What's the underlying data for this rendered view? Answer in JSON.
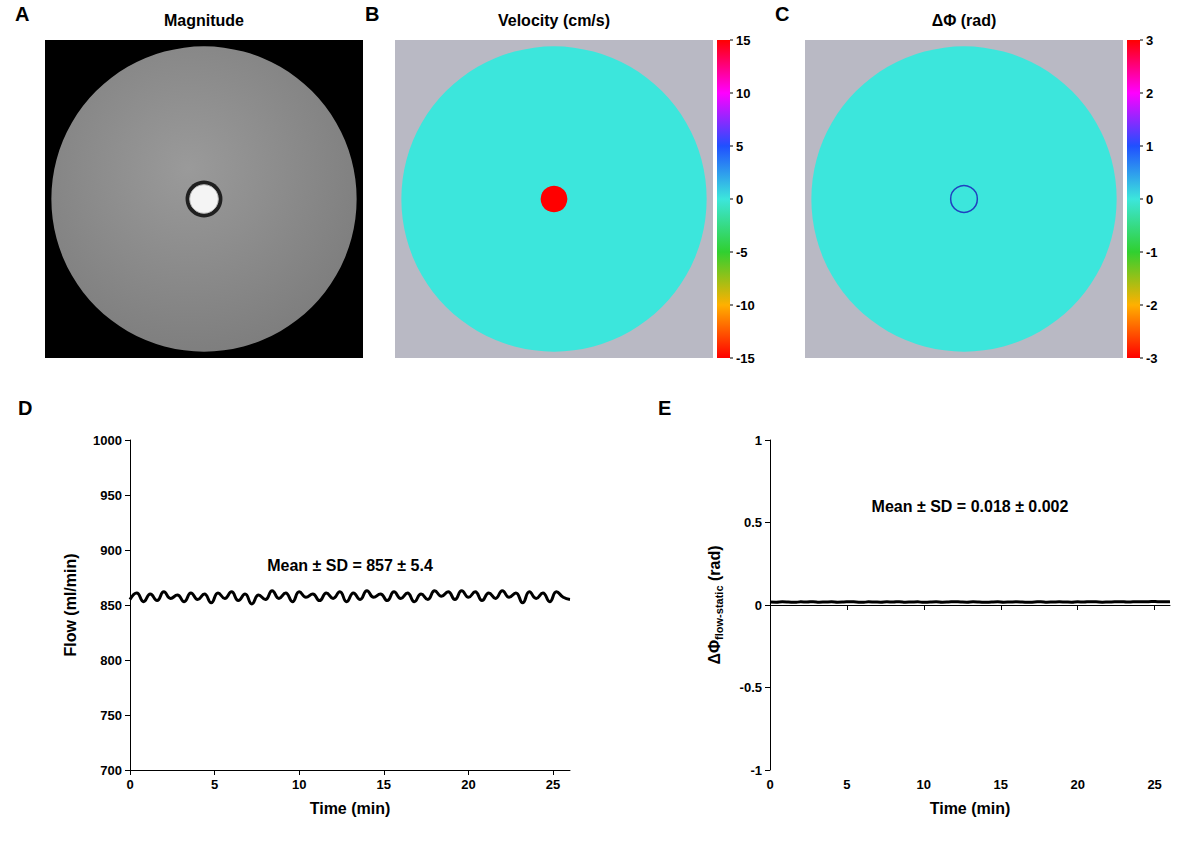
{
  "chart_data": [
    {
      "type": "image",
      "panel": "A",
      "title": "Magnitude"
    },
    {
      "type": "image",
      "panel": "B",
      "title": "Velocity (cm/s)",
      "disc_value": 0,
      "tube_value": 15,
      "colorbar_range": [
        -15,
        15
      ],
      "colorbar_ticks": [
        -15,
        -10,
        -5,
        0,
        5,
        10,
        15
      ]
    },
    {
      "type": "image",
      "panel": "C",
      "title": "ΔΦ (rad)",
      "disc_value": 0,
      "tube_value": 0,
      "colorbar_range": [
        -3,
        3
      ],
      "colorbar_ticks": [
        -3,
        -2,
        -1,
        0,
        1,
        2,
        3
      ]
    },
    {
      "type": "line",
      "panel": "D",
      "xlabel": "Time (min)",
      "ylabel": {
        "text": "Flow (ml/min)"
      },
      "annotation": "Mean ± SD = 857 ± 5.4",
      "color": "#000000",
      "x": [
        0,
        0.4,
        0.8,
        1.2,
        1.6,
        2,
        2.4,
        2.8,
        3.2,
        3.6,
        4,
        4.4,
        4.8,
        5.2,
        5.6,
        6,
        6.4,
        6.8,
        7.2,
        7.6,
        8,
        8.4,
        8.8,
        9.2,
        9.6,
        10,
        10.4,
        10.8,
        11.2,
        11.6,
        12,
        12.4,
        12.8,
        13.2,
        13.6,
        14,
        14.4,
        14.8,
        15.2,
        15.6,
        16,
        16.4,
        16.8,
        17.2,
        17.6,
        18,
        18.4,
        18.8,
        19.2,
        19.6,
        20,
        20.4,
        20.8,
        21.2,
        21.6,
        22,
        22.4,
        22.8,
        23.2,
        23.6,
        24,
        24.4,
        24.8,
        25.2,
        25.6,
        26
      ],
      "values": [
        855,
        861,
        853,
        860,
        854,
        862,
        856,
        859,
        853,
        861,
        855,
        860,
        852,
        861,
        856,
        862,
        854,
        860,
        851,
        859,
        855,
        863,
        856,
        861,
        853,
        862,
        857,
        860,
        854,
        861,
        856,
        862,
        853,
        861,
        855,
        863,
        857,
        860,
        854,
        862,
        856,
        861,
        853,
        860,
        855,
        863,
        858,
        862,
        855,
        863,
        857,
        862,
        854,
        861,
        856,
        863,
        857,
        861,
        852,
        862,
        856,
        861,
        853,
        862,
        857,
        855
      ],
      "xlim": [
        0,
        26
      ],
      "xticks": [
        0,
        5,
        10,
        15,
        20,
        25
      ],
      "ylim": [
        700,
        1000
      ],
      "yticks": [
        700,
        750,
        800,
        850,
        900,
        950,
        1000
      ],
      "grid": false
    },
    {
      "type": "line",
      "panel": "E",
      "xlabel": "Time (min)",
      "ylabel": {
        "text": "ΔΦ",
        "subscript": "flow-static",
        "unit": "(rad)"
      },
      "annotation": "Mean ± SD = 0.018 ± 0.002",
      "color": "#000000",
      "x": [
        0,
        0.4,
        0.8,
        1.2,
        1.6,
        2,
        2.4,
        2.8,
        3.2,
        3.6,
        4,
        4.4,
        4.8,
        5.2,
        5.6,
        6,
        6.4,
        6.8,
        7.2,
        7.6,
        8,
        8.4,
        8.8,
        9.2,
        9.6,
        10,
        10.4,
        10.8,
        11.2,
        11.6,
        12,
        12.4,
        12.8,
        13.2,
        13.6,
        14,
        14.4,
        14.8,
        15.2,
        15.6,
        16,
        16.4,
        16.8,
        17.2,
        17.6,
        18,
        18.4,
        18.8,
        19.2,
        19.6,
        20,
        20.4,
        20.8,
        21.2,
        21.6,
        22,
        22.4,
        22.8,
        23.2,
        23.6,
        24,
        24.4,
        24.8,
        25.2,
        25.6,
        26
      ],
      "values": [
        0.018,
        0.017,
        0.019,
        0.018,
        0.016,
        0.019,
        0.018,
        0.02,
        0.017,
        0.018,
        0.019,
        0.017,
        0.018,
        0.02,
        0.018,
        0.016,
        0.019,
        0.018,
        0.017,
        0.019,
        0.018,
        0.02,
        0.017,
        0.018,
        0.019,
        0.016,
        0.018,
        0.019,
        0.017,
        0.018,
        0.02,
        0.018,
        0.017,
        0.019,
        0.018,
        0.016,
        0.018,
        0.019,
        0.017,
        0.018,
        0.019,
        0.018,
        0.016,
        0.018,
        0.02,
        0.017,
        0.018,
        0.019,
        0.018,
        0.017,
        0.019,
        0.018,
        0.02,
        0.019,
        0.017,
        0.018,
        0.019,
        0.02,
        0.018,
        0.019,
        0.02,
        0.019,
        0.021,
        0.02,
        0.019,
        0.02
      ],
      "xlim": [
        0,
        26
      ],
      "xticks": [
        0,
        5,
        10,
        15,
        20,
        25
      ],
      "ylim": [
        -1,
        1
      ],
      "yticks": [
        -1,
        -0.5,
        0,
        0.5,
        1
      ],
      "grid": false
    }
  ]
}
